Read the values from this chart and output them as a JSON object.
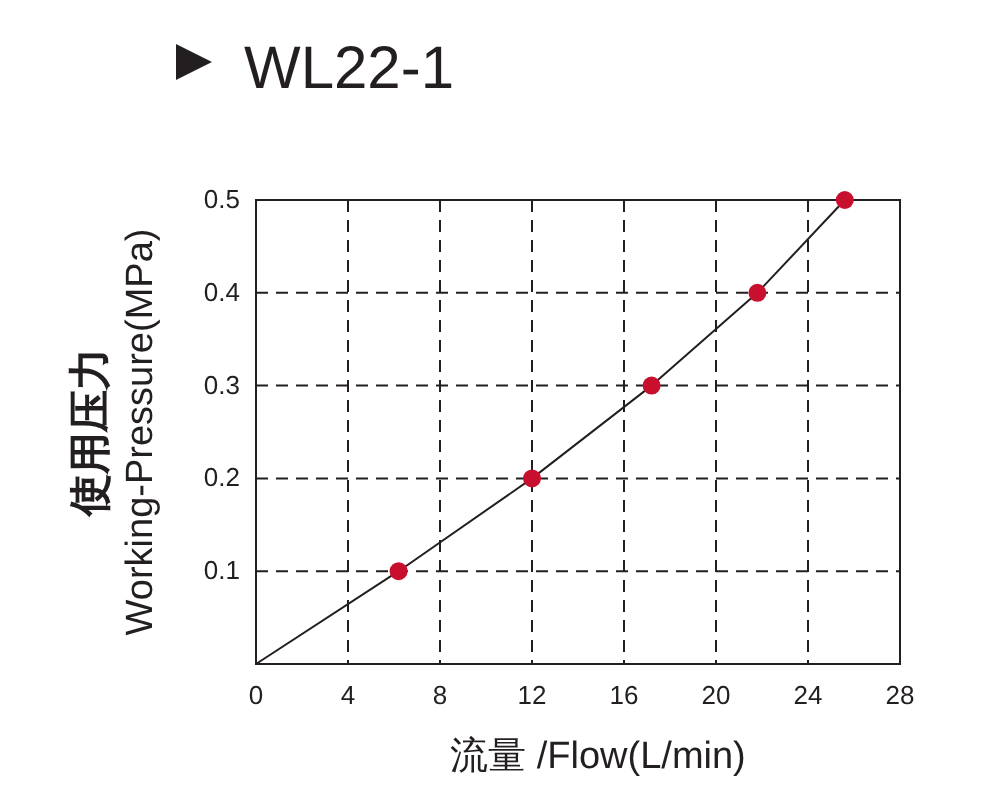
{
  "chart_data": {
    "type": "line",
    "title": "WL22-1",
    "xlabel": "流量 /Flow(L/min)",
    "ylabel": "使用压力\nWorking-Pressure(MPa)",
    "xlim": [
      0,
      28
    ],
    "ylim": [
      0,
      0.5
    ],
    "xticks": [
      0,
      4,
      8,
      12,
      16,
      20,
      24,
      28
    ],
    "yticks": [
      0.1,
      0.2,
      0.3,
      0.4,
      0.5
    ],
    "grid": true,
    "line_style": "solid",
    "series": [
      {
        "type": "line",
        "color": "#231f20",
        "marker": "none",
        "x": [
          0,
          6.2,
          12,
          17.2,
          21.8,
          25.6
        ],
        "values": [
          0,
          0.1,
          0.2,
          0.3,
          0.4,
          0.5
        ]
      },
      {
        "type": "scatter",
        "color": "#c8102e",
        "marker": "circle",
        "x": [
          6.2,
          12,
          17.2,
          21.8,
          25.6
        ],
        "values": [
          0.1,
          0.2,
          0.3,
          0.4,
          0.5
        ]
      }
    ]
  }
}
